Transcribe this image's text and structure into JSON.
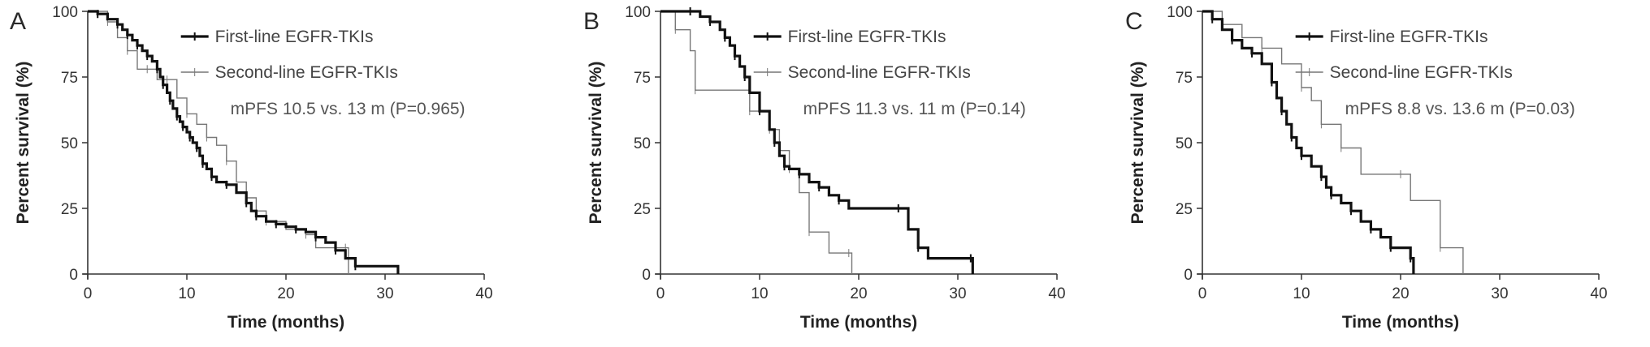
{
  "chart_data": [
    {
      "type": "line",
      "panel_label": "A",
      "xlabel": "Time (months)",
      "ylabel": "Percent survival (%)",
      "xlim": [
        0,
        40
      ],
      "ylim": [
        0,
        100
      ],
      "xticks": [
        0,
        10,
        20,
        30,
        40
      ],
      "yticks": [
        0,
        25,
        50,
        75,
        100
      ],
      "legend_position": "top-right",
      "annotation": "mPFS 10.5 vs. 13 m (P=0.965)",
      "series": [
        {
          "name": "First-line EGFR-TKIs",
          "color": "#111111",
          "style": "thick",
          "x": [
            0,
            1,
            2,
            3,
            3.5,
            4,
            4.5,
            5,
            5.5,
            6,
            6.5,
            7,
            7.3,
            7.6,
            8,
            8.3,
            8.6,
            9,
            9.3,
            9.6,
            10,
            10.3,
            10.6,
            11,
            11.3,
            11.6,
            12,
            12.5,
            13,
            14,
            15,
            16,
            16.5,
            17,
            18,
            19,
            20,
            21,
            22,
            23,
            24,
            25,
            26,
            27,
            31,
            31.3
          ],
          "y": [
            100,
            99,
            97,
            95,
            93,
            91,
            89,
            87,
            85,
            83,
            81,
            78,
            75,
            72,
            69,
            66,
            63,
            60,
            58,
            56,
            54,
            52,
            50,
            48,
            45,
            42,
            40,
            37,
            35,
            34,
            31,
            27,
            24,
            22,
            20,
            19,
            18,
            17,
            16,
            14,
            12,
            9,
            6,
            3,
            3,
            0
          ]
        },
        {
          "name": "Second-line EGFR-TKIs",
          "color": "#777777",
          "style": "thin",
          "x": [
            0,
            2,
            3,
            4,
            5,
            6,
            7,
            8,
            9,
            10,
            11,
            12,
            13,
            14,
            15,
            16,
            17,
            18,
            20,
            22,
            23,
            26,
            26.3
          ],
          "y": [
            100,
            96,
            90,
            85,
            78,
            78,
            74,
            74,
            67,
            61,
            57,
            52,
            49,
            43,
            35,
            29,
            24,
            20,
            17,
            15,
            10,
            10,
            0
          ]
        }
      ]
    },
    {
      "type": "line",
      "panel_label": "B",
      "xlabel": "Time (months)",
      "ylabel": "Percent survival (%)",
      "xlim": [
        0,
        40
      ],
      "ylim": [
        0,
        100
      ],
      "xticks": [
        0,
        10,
        20,
        30,
        40
      ],
      "yticks": [
        0,
        25,
        50,
        75,
        100
      ],
      "legend_position": "top-right",
      "annotation": "mPFS 11.3 vs. 11 m (P=0.14)",
      "series": [
        {
          "name": "First-line EGFR-TKIs",
          "color": "#111111",
          "style": "thick",
          "x": [
            0,
            3,
            4,
            5,
            6,
            6.5,
            7,
            7.5,
            8,
            8.5,
            9,
            10,
            11,
            11.5,
            12,
            12.5,
            13,
            14,
            15,
            16,
            17,
            18,
            19,
            24,
            25,
            26,
            27,
            31.3,
            31.5
          ],
          "y": [
            100,
            100,
            98,
            96,
            93,
            90,
            87,
            83,
            79,
            75,
            69,
            62,
            55,
            50,
            45,
            41,
            40,
            38,
            35,
            33,
            30,
            28,
            25,
            25,
            17,
            10,
            6,
            6,
            0
          ]
        },
        {
          "name": "Second-line EGFR-TKIs",
          "color": "#777777",
          "style": "thin",
          "x": [
            0,
            1.5,
            3,
            3.5,
            7,
            9,
            10,
            11,
            12,
            13,
            14,
            15,
            17,
            19,
            19.3
          ],
          "y": [
            100,
            93,
            85,
            70,
            70,
            62,
            62,
            55,
            47,
            40,
            31,
            16,
            8,
            8,
            0
          ]
        }
      ]
    },
    {
      "type": "line",
      "panel_label": "C",
      "xlabel": "Time (months)",
      "ylabel": "Percent survival (%)",
      "xlim": [
        0,
        40
      ],
      "ylim": [
        0,
        100
      ],
      "xticks": [
        0,
        10,
        20,
        30,
        40
      ],
      "yticks": [
        0,
        25,
        50,
        75,
        100
      ],
      "legend_position": "top-right",
      "annotation": "mPFS 8.8 vs. 13.6 m (P=0.03)",
      "series": [
        {
          "name": "First-line EGFR-TKIs",
          "color": "#111111",
          "style": "thick",
          "x": [
            0,
            1,
            2,
            3,
            4,
            5,
            6,
            7,
            7.5,
            8,
            8.5,
            9,
            9.5,
            10,
            11,
            12,
            12.5,
            13,
            14,
            15,
            16,
            17,
            18,
            19,
            20,
            21,
            21.3
          ],
          "y": [
            100,
            97,
            93,
            89,
            86,
            84,
            80,
            73,
            67,
            62,
            57,
            52,
            48,
            45,
            41,
            37,
            33,
            30,
            27,
            24,
            20,
            17,
            14,
            10,
            10,
            6,
            0
          ]
        },
        {
          "name": "Second-line EGFR-TKIs",
          "color": "#777777",
          "style": "thin",
          "x": [
            0,
            2,
            4,
            6,
            8,
            10,
            11,
            12,
            13,
            14,
            16,
            20,
            21,
            24,
            26,
            26.3
          ],
          "y": [
            100,
            95,
            90,
            86,
            80,
            71,
            66,
            57,
            57,
            48,
            38,
            38,
            28,
            10,
            10,
            0
          ]
        }
      ]
    }
  ]
}
